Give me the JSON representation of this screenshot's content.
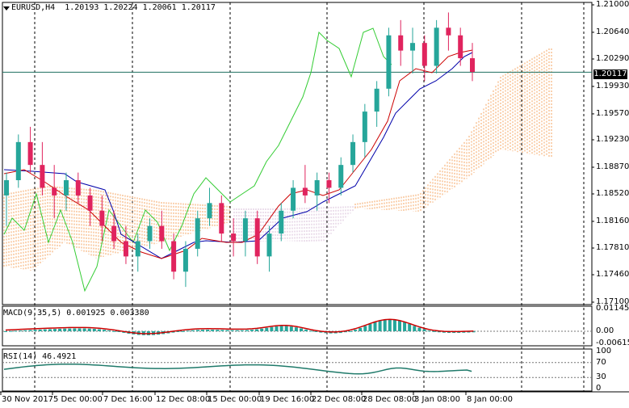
{
  "header": {
    "symbol": "EURUSD,H4",
    "ohlc": "1.20193 1.20224 1.20061 1.20117"
  },
  "current_price": "1.20117",
  "price_axis": [
    "1.21000",
    "1.20640",
    "1.20290",
    "1.19930",
    "1.19570",
    "1.19230",
    "1.18870",
    "1.18520",
    "1.18160",
    "1.17810",
    "1.17460",
    "1.17100"
  ],
  "macd": {
    "title": "MACD(9,35,5) 0.001925 0.003380",
    "axis": [
      "0.011456",
      "0.00",
      "-0.00615"
    ]
  },
  "rsi": {
    "title": "RSI(14) 46.4921",
    "axis": [
      "100",
      "70",
      "30",
      "0"
    ]
  },
  "time_axis": [
    "30 Nov 2017",
    "5 Dec 00:00",
    "7 Dec 16:00",
    "12 Dec 08:00",
    "15 Dec 00:00",
    "19 Dec 16:00",
    "22 Dec 08:00",
    "28 Dec 08:00",
    "3 Jan 08:00",
    "8 Jan 00:00"
  ],
  "colors": {
    "bull": "#26a69a",
    "bear": "#e0245e",
    "tenkan": "#cc0000",
    "kijun": "#0000aa",
    "chikou": "#33cc33",
    "kumo_bull": "#f4a460",
    "kumo_bear": "#d8bfd8",
    "macd_hist": "#26a69a",
    "macd_signal": "#cc0000",
    "rsi_line": "#1f7a6a"
  },
  "chart_data": {
    "type": "candlestick",
    "symbol": "EURUSD",
    "timeframe": "H4",
    "ylim": [
      1.171,
      1.21
    ],
    "candles_sampled": [
      [
        1.185,
        1.188,
        1.181,
        1.187
      ],
      [
        1.187,
        1.193,
        1.186,
        1.192
      ],
      [
        1.192,
        1.194,
        1.188,
        1.189
      ],
      [
        1.189,
        1.192,
        1.185,
        1.186
      ],
      [
        1.186,
        1.189,
        1.182,
        1.185
      ],
      [
        1.185,
        1.188,
        1.183,
        1.187
      ],
      [
        1.187,
        1.188,
        1.184,
        1.185
      ],
      [
        1.185,
        1.186,
        1.181,
        1.183
      ],
      [
        1.183,
        1.185,
        1.179,
        1.181
      ],
      [
        1.181,
        1.183,
        1.178,
        1.179
      ],
      [
        1.179,
        1.181,
        1.176,
        1.177
      ],
      [
        1.177,
        1.18,
        1.175,
        1.179
      ],
      [
        1.179,
        1.182,
        1.178,
        1.181
      ],
      [
        1.181,
        1.183,
        1.178,
        1.179
      ],
      [
        1.179,
        1.18,
        1.174,
        1.175
      ],
      [
        1.175,
        1.179,
        1.173,
        1.178
      ],
      [
        1.178,
        1.183,
        1.177,
        1.182
      ],
      [
        1.182,
        1.186,
        1.181,
        1.184
      ],
      [
        1.184,
        1.185,
        1.179,
        1.18
      ],
      [
        1.18,
        1.182,
        1.177,
        1.179
      ],
      [
        1.179,
        1.183,
        1.177,
        1.182
      ],
      [
        1.182,
        1.183,
        1.176,
        1.177
      ],
      [
        1.177,
        1.181,
        1.175,
        1.18
      ],
      [
        1.18,
        1.184,
        1.179,
        1.183
      ],
      [
        1.183,
        1.187,
        1.182,
        1.186
      ],
      [
        1.186,
        1.189,
        1.184,
        1.185
      ],
      [
        1.185,
        1.188,
        1.183,
        1.187
      ],
      [
        1.187,
        1.188,
        1.184,
        1.186
      ],
      [
        1.186,
        1.19,
        1.185,
        1.189
      ],
      [
        1.189,
        1.193,
        1.188,
        1.192
      ],
      [
        1.192,
        1.197,
        1.19,
        1.196
      ],
      [
        1.196,
        1.2,
        1.194,
        1.199
      ],
      [
        1.199,
        1.207,
        1.198,
        1.206
      ],
      [
        1.206,
        1.208,
        1.202,
        1.204
      ],
      [
        1.204,
        1.207,
        1.201,
        1.205
      ],
      [
        1.205,
        1.206,
        1.2,
        1.202
      ],
      [
        1.202,
        1.208,
        1.201,
        1.207
      ],
      [
        1.207,
        1.209,
        1.204,
        1.206
      ],
      [
        1.206,
        1.207,
        1.202,
        1.203
      ],
      [
        1.203,
        1.205,
        1.2,
        1.2012
      ]
    ],
    "macd_ylim": [
      -0.00615,
      0.011456
    ],
    "rsi_levels": [
      70,
      30
    ],
    "rsi_last": 46.4921
  }
}
